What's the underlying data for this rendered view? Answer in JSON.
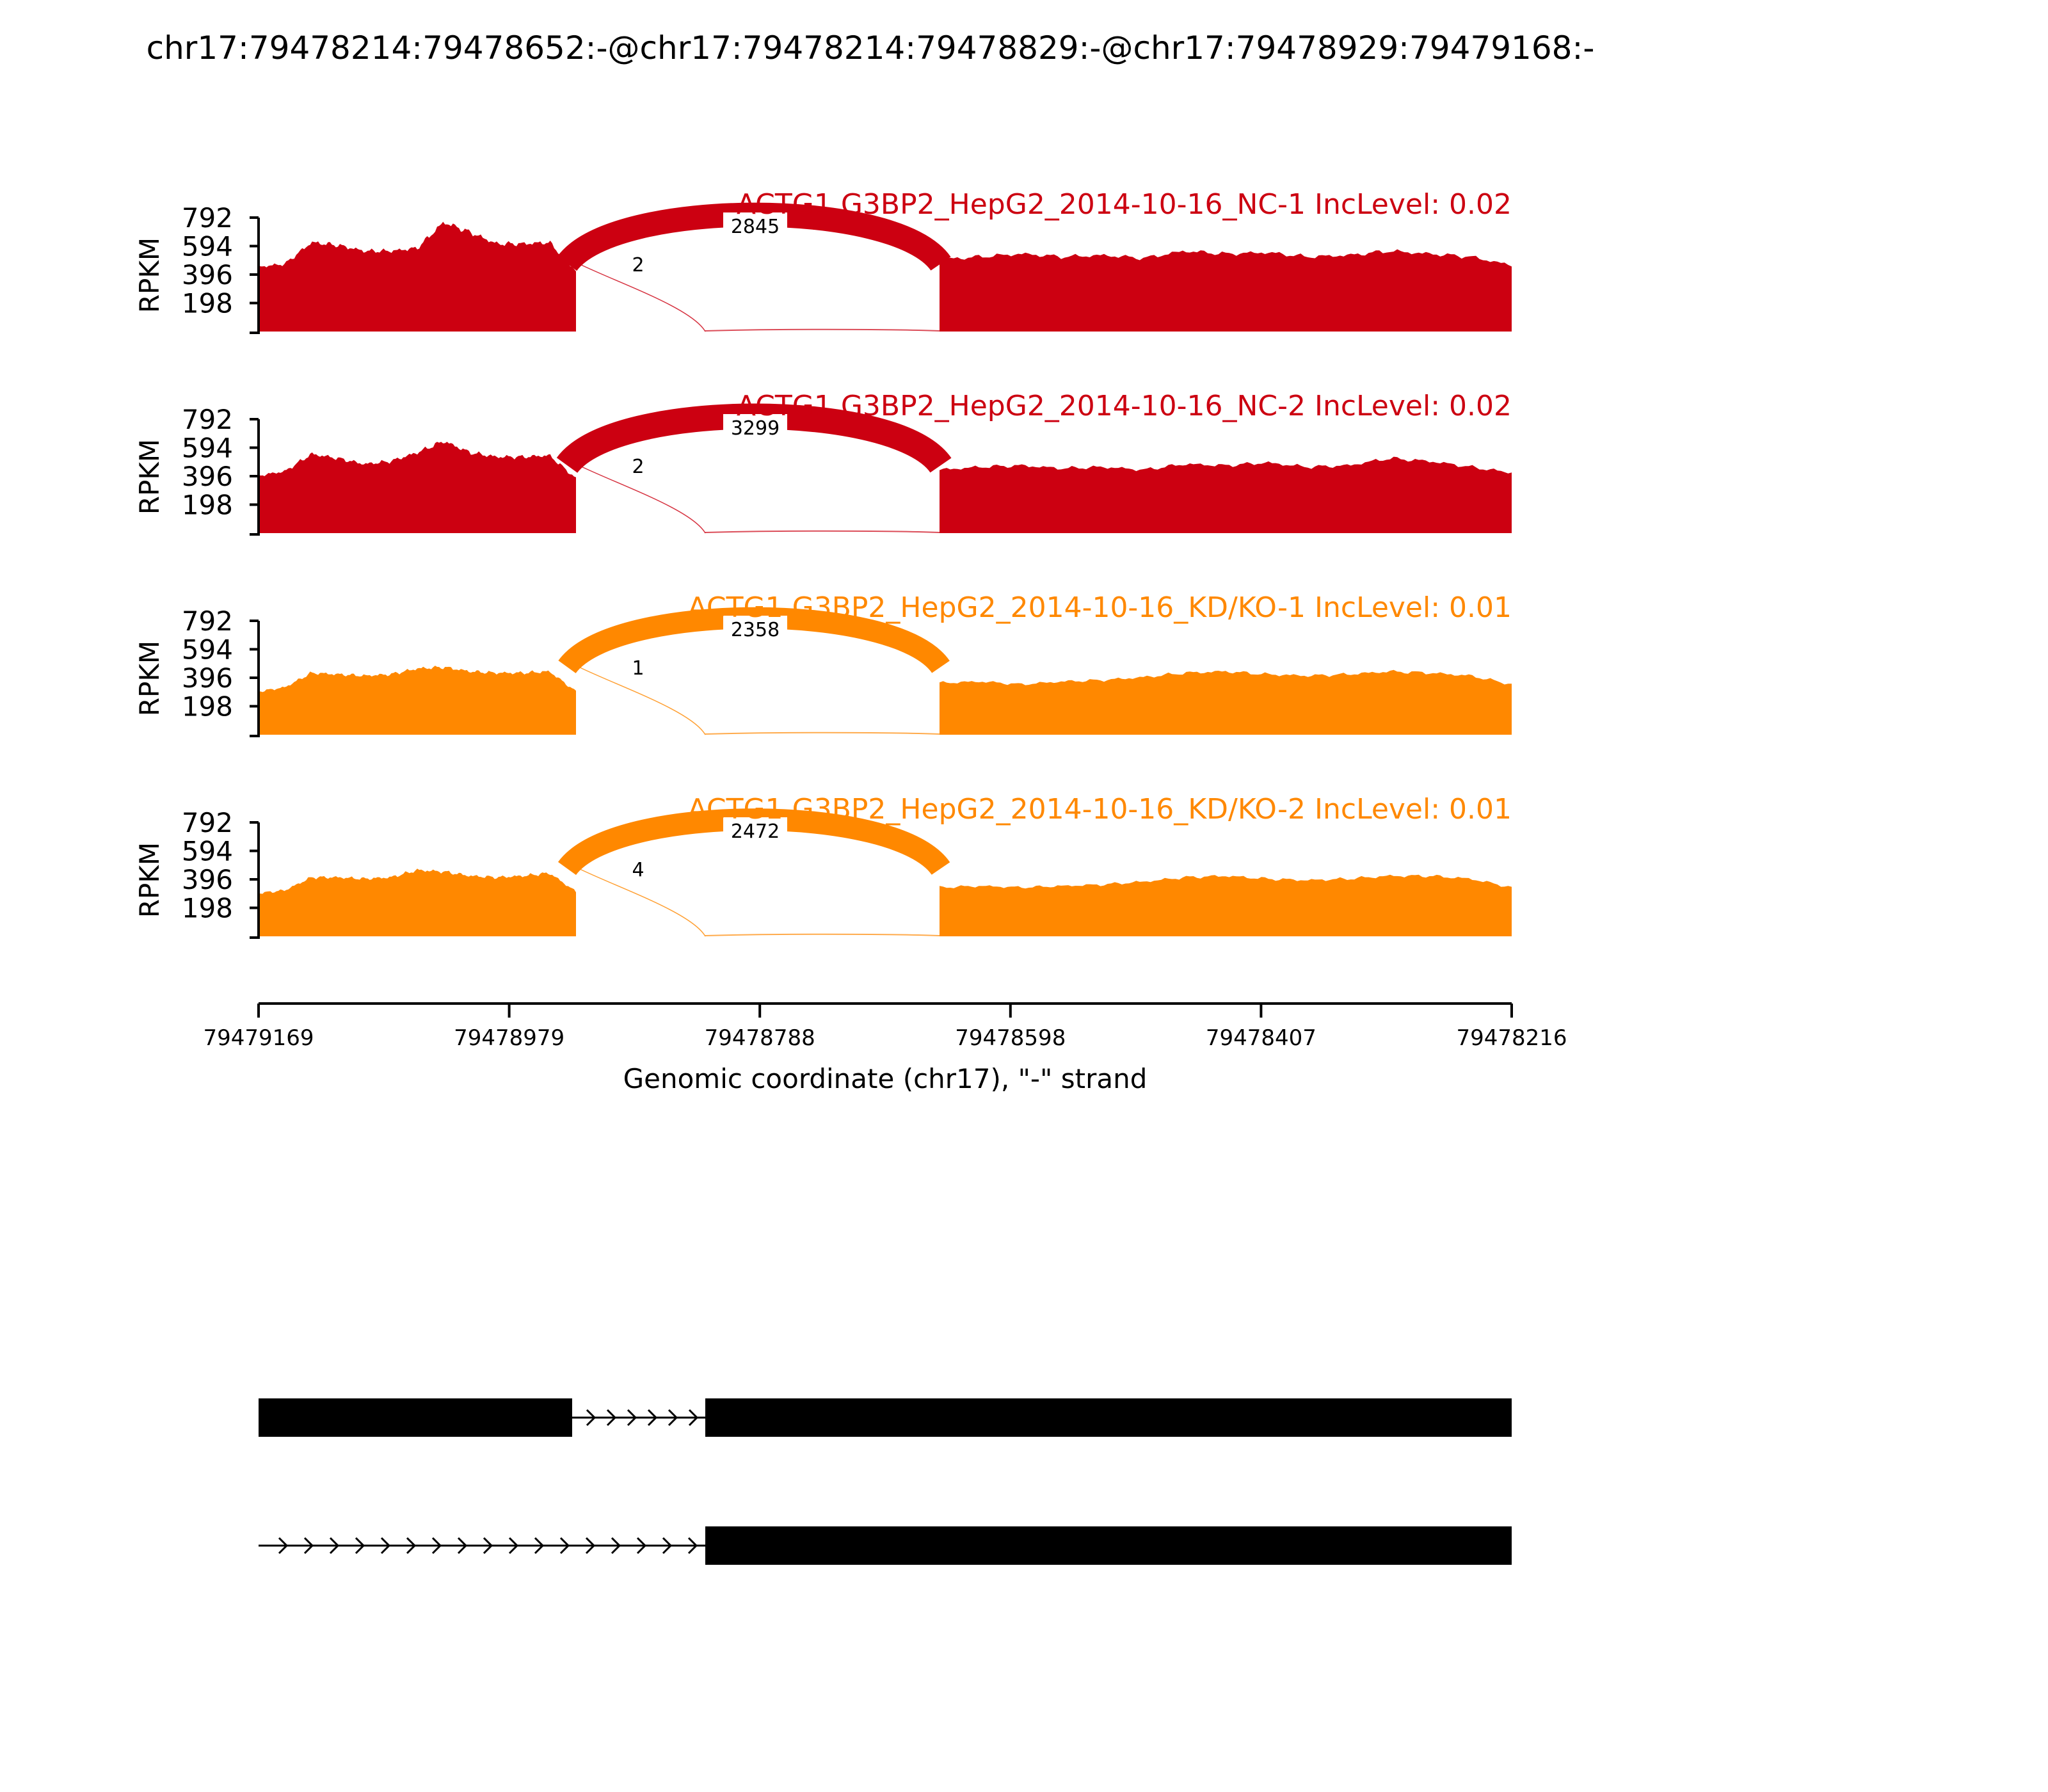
{
  "figure": {
    "title": "chr17:79478214:79478652:-@chr17:79478214:79478829:-@chr17:79478929:79479168:-"
  },
  "chart_data": {
    "type": "area",
    "description_free": true,
    "x_axis": {
      "label": "Genomic coordinate (chr17), \"-\" strand",
      "ticks": [
        "79479169",
        "79478979",
        "79478788",
        "79478598",
        "79478407",
        "79478216"
      ],
      "range": [
        79479169,
        79478216
      ],
      "reversed": true
    },
    "y_axis": {
      "label": "RPKM",
      "ticks": [
        "792",
        "594",
        "396",
        "198"
      ],
      "range": [
        0,
        792
      ]
    },
    "tracks": [
      {
        "name": "ACTG1 G3BP2_HepG2_2014-10-16_NC-1 IncLevel: 0.02",
        "color": "#CC0011",
        "exon1_level": [
          450,
          470,
          620,
          600,
          560,
          560,
          580,
          760,
          690,
          610,
          610,
          620,
          420
        ],
        "exon3_level": [
          500,
          520,
          540,
          520,
          530,
          510,
          560,
          540,
          550,
          520,
          530,
          560,
          540,
          520,
          460
        ],
        "junctions": [
          {
            "label": "2845",
            "count": 2845
          },
          {
            "label": "2",
            "count": 2
          }
        ]
      },
      {
        "name": "ACTG1 G3BP2_HepG2_2014-10-16_NC-2 IncLevel: 0.02",
        "color": "#CC0011",
        "exon1_level": [
          400,
          430,
          550,
          520,
          480,
          500,
          560,
          640,
          560,
          530,
          530,
          540,
          380
        ],
        "exon3_level": [
          440,
          460,
          470,
          450,
          460,
          440,
          480,
          470,
          490,
          460,
          470,
          520,
          500,
          460,
          420
        ],
        "junctions": [
          {
            "label": "3299",
            "count": 3299
          },
          {
            "label": "2",
            "count": 2
          }
        ]
      },
      {
        "name": "ACTG1 G3BP2_HepG2_2014-10-16_KD/KO-1 IncLevel: 0.01",
        "color": "#FF8800",
        "exon1_level": [
          300,
          330,
          430,
          420,
          410,
          420,
          460,
          470,
          440,
          430,
          430,
          440,
          300
        ],
        "exon3_level": [
          360,
          370,
          350,
          370,
          380,
          400,
          430,
          440,
          420,
          410,
          420,
          440,
          430,
          410,
          350
        ],
        "junctions": [
          {
            "label": "2358",
            "count": 2358
          },
          {
            "label": "1",
            "count": 1
          }
        ]
      },
      {
        "name": "ACTG1 G3BP2_HepG2_2014-10-16_KD/KO-2 IncLevel: 0.01",
        "color": "#FF8800",
        "exon1_level": [
          300,
          320,
          410,
          410,
          400,
          410,
          460,
          450,
          420,
          410,
          420,
          440,
          310
        ],
        "exon3_level": [
          340,
          350,
          340,
          350,
          360,
          380,
          410,
          420,
          400,
          390,
          400,
          420,
          420,
          400,
          340
        ],
        "junctions": [
          {
            "label": "2472",
            "count": 2472
          },
          {
            "label": "4",
            "count": 4
          }
        ]
      }
    ]
  }
}
